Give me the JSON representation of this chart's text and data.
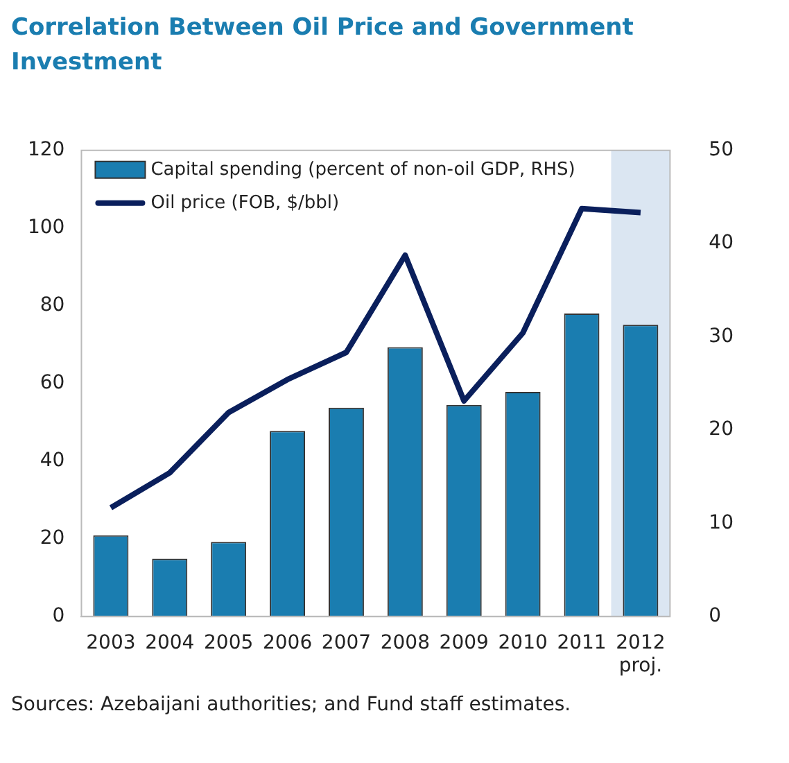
{
  "chart_data": {
    "type": "bar",
    "title": "Correlation Between  Oil Price and Government Investment",
    "categories": [
      "2003",
      "2004",
      "2005",
      "2006",
      "2007",
      "2008",
      "2009",
      "2010",
      "2011",
      "2012\nproj."
    ],
    "series": [
      {
        "name": "Capital spending (percent of non-oil GDP, RHS)",
        "axis": "y2",
        "color": "#1a7db0",
        "values": [
          8.7,
          6.2,
          8.0,
          19.9,
          22.4,
          28.9,
          22.7,
          24.1,
          32.5,
          31.3
        ]
      },
      {
        "name": "Oil price (FOB, $/bbl)",
        "type": "line",
        "axis": "y",
        "color": "#0a1f5c",
        "values": [
          28,
          37,
          52.5,
          61,
          68,
          93,
          55.5,
          73,
          105,
          104
        ]
      }
    ],
    "ylim": [
      0,
      120
    ],
    "yticks": [
      0,
      20,
      40,
      60,
      80,
      100,
      120
    ],
    "y2lim": [
      0,
      50
    ],
    "y2ticks": [
      0,
      10,
      20,
      30,
      40,
      50
    ],
    "bands": [
      {
        "axis": "x",
        "from": "2012\nproj.",
        "to": "2012\nproj.",
        "color": "#dbe6f2"
      }
    ],
    "legend": "top left",
    "grid": false,
    "marker": "none",
    "annotations": [
      "Sources: Azebaijani authorities; and Fund staff estimates."
    ]
  }
}
